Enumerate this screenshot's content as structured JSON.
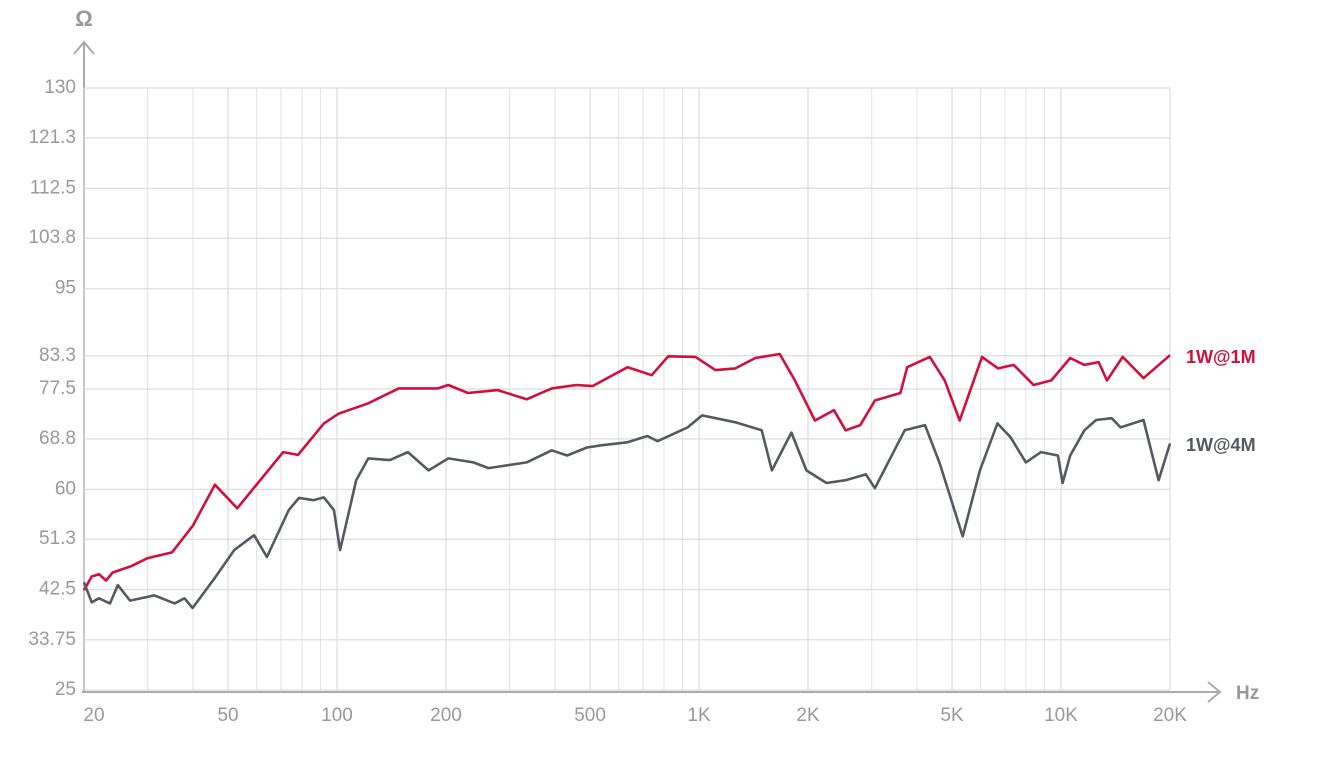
{
  "chart_data": {
    "type": "line",
    "ylabel": "Ω",
    "xlabel": "Hz",
    "xscale": "log",
    "xlim": [
      20,
      20000
    ],
    "xticks": [
      20,
      50,
      100,
      200,
      500,
      {
        "value": 1000,
        "label": "1K"
      },
      {
        "value": 2000,
        "label": "2K"
      },
      {
        "value": 5000,
        "label": "5K"
      },
      {
        "value": 10000,
        "label": "10K"
      },
      {
        "value": 20000,
        "label": "20K"
      }
    ],
    "ylim": [
      25,
      130
    ],
    "yticks": [
      25,
      33.75,
      42.5,
      51.3,
      60,
      68.8,
      77.5,
      83.3,
      95,
      103.8,
      112.5,
      121.3,
      130
    ],
    "grid": true,
    "series": [
      {
        "name": "1W@1M",
        "color": "#d0103a",
        "x": [
          20,
          21,
          22,
          23,
          24,
          27,
          30,
          35,
          40,
          46,
          53,
          71,
          78,
          92,
          101,
          122,
          148,
          190,
          203,
          230,
          278,
          334,
          392,
          458,
          508,
          635,
          740,
          822,
          978,
          1110,
          1260,
          1430,
          1670,
          1840,
          2090,
          2360,
          2540,
          2790,
          3060,
          3600,
          3760,
          4340,
          4770,
          5250,
          6050,
          6700,
          7400,
          8400,
          9400,
          10600,
          11600,
          12700,
          13400,
          14800,
          16900,
          20000
        ],
        "values": [
          42.4,
          44.8,
          45.2,
          44.1,
          45.5,
          46.6,
          48.0,
          49.0,
          53.7,
          60.8,
          56.7,
          66.5,
          66.0,
          71.5,
          73.2,
          75.0,
          77.6,
          77.6,
          78.2,
          76.8,
          77.3,
          75.7,
          77.6,
          78.2,
          78.0,
          81.3,
          79.9,
          83.2,
          83.1,
          80.8,
          81.1,
          82.9,
          83.6,
          79.0,
          72.0,
          73.8,
          70.3,
          71.2,
          75.5,
          76.8,
          81.3,
          83.1,
          79.0,
          72.0,
          83.1,
          81.1,
          81.7,
          78.2,
          79.0,
          82.9,
          81.7,
          82.2,
          79.0,
          83.1,
          79.4,
          83.4
        ]
      },
      {
        "name": "1W@4M",
        "color": "#555a60",
        "x": [
          20,
          21,
          22,
          23.6,
          24.8,
          26.8,
          31.3,
          35.6,
          37.9,
          39.9,
          45.9,
          52,
          59,
          64,
          73.6,
          78.5,
          86,
          92,
          98,
          102,
          113,
          122,
          140,
          157,
          179,
          203,
          238,
          262,
          334,
          392,
          432,
          490,
          540,
          634,
          720,
          768,
          930,
          1020,
          1260,
          1490,
          1590,
          1800,
          1980,
          2250,
          2540,
          2890,
          3060,
          3700,
          4210,
          4620,
          5350,
          5970,
          6670,
          7250,
          8000,
          8800,
          9800,
          10100,
          10600,
          11600,
          12500,
          13800,
          14600,
          16900,
          18600,
          20000
        ],
        "values": [
          43.8,
          40.3,
          41.0,
          40.1,
          43.3,
          40.6,
          41.5,
          40.1,
          41.0,
          39.3,
          44.5,
          49.4,
          52.0,
          48.2,
          56.4,
          58.5,
          58.1,
          58.6,
          56.4,
          49.4,
          61.6,
          65.4,
          65.1,
          66.5,
          63.3,
          65.4,
          64.7,
          63.7,
          64.7,
          66.8,
          65.9,
          67.3,
          67.7,
          68.2,
          69.3,
          68.4,
          70.8,
          72.9,
          71.7,
          70.3,
          63.3,
          69.9,
          63.3,
          61.1,
          61.6,
          62.6,
          60.2,
          70.3,
          71.2,
          64.6,
          51.8,
          63.3,
          71.5,
          69.1,
          64.7,
          66.5,
          65.9,
          61.1,
          65.9,
          70.3,
          72.1,
          72.4,
          70.8,
          72.1,
          61.6,
          68.0
        ]
      }
    ]
  }
}
